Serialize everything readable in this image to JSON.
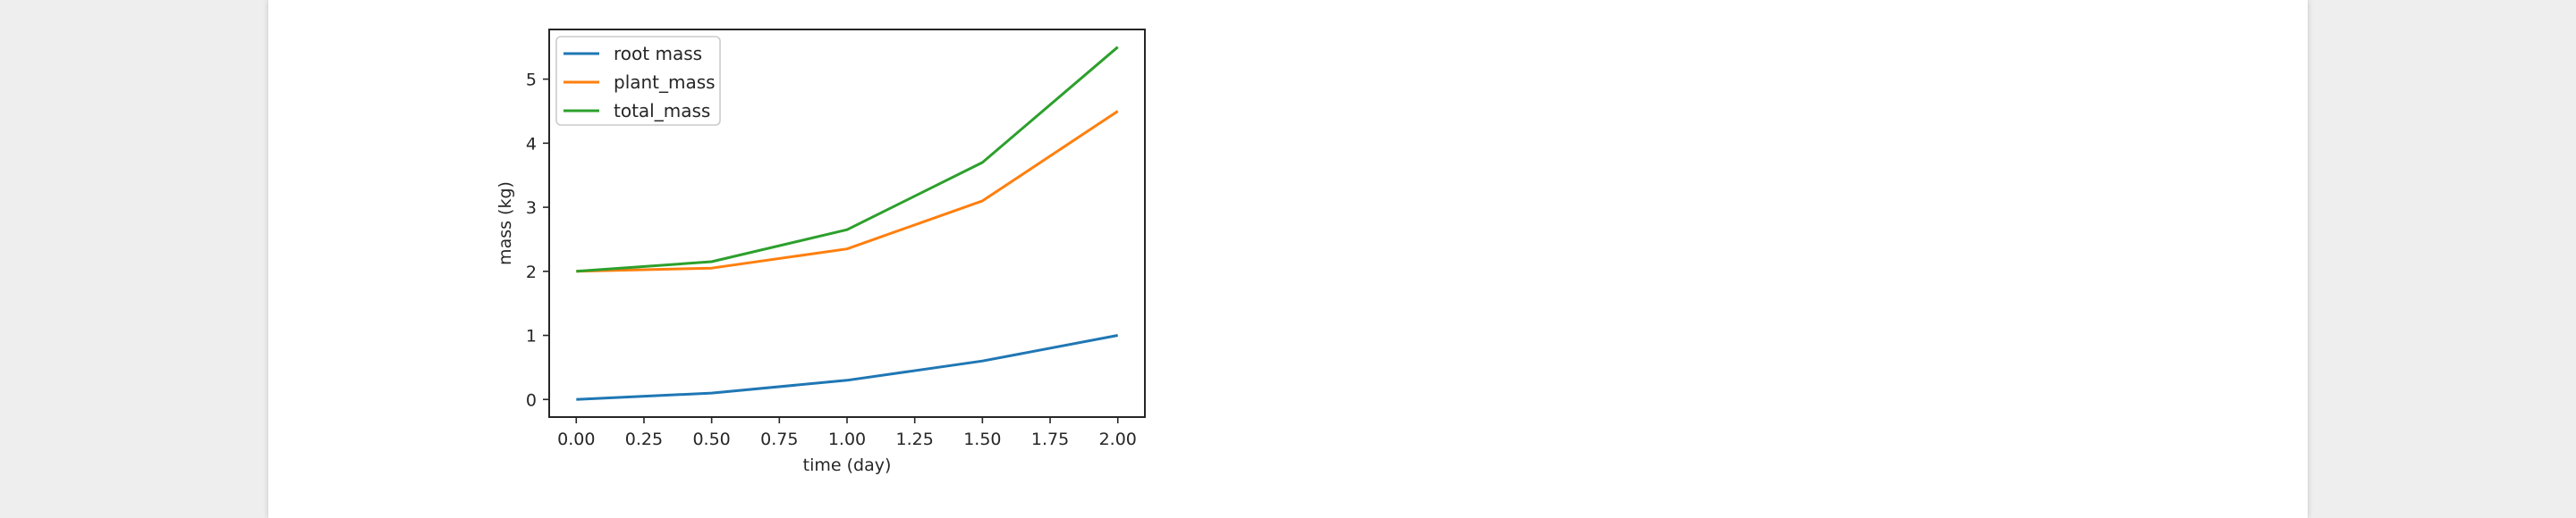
{
  "chart_data": {
    "type": "line",
    "x": [
      0.0,
      0.5,
      1.0,
      1.5,
      2.0
    ],
    "series": [
      {
        "name": "root mass",
        "values": [
          0.0,
          0.1,
          0.3,
          0.6,
          1.0
        ],
        "color": "#1f77b4"
      },
      {
        "name": "plant_mass",
        "values": [
          2.0,
          2.05,
          2.35,
          3.1,
          4.5
        ],
        "color": "#ff7f0e"
      },
      {
        "name": "total_mass",
        "values": [
          2.0,
          2.15,
          2.65,
          3.7,
          5.5
        ],
        "color": "#2ca02c"
      }
    ],
    "xlabel": "time (day)",
    "ylabel": "mass (kg)",
    "xlim": [
      -0.1,
      2.1
    ],
    "ylim": [
      -0.275,
      5.775
    ],
    "x_ticks": [
      0.0,
      0.25,
      0.5,
      0.75,
      1.0,
      1.25,
      1.5,
      1.75,
      2.0
    ],
    "x_tick_labels": [
      "0.00",
      "0.25",
      "0.50",
      "0.75",
      "1.00",
      "1.25",
      "1.50",
      "1.75",
      "2.00"
    ],
    "y_ticks": [
      0,
      1,
      2,
      3,
      4,
      5
    ],
    "y_tick_labels": [
      "0",
      "1",
      "2",
      "3",
      "4",
      "5"
    ],
    "grid": false,
    "legend_position": "upper-left"
  }
}
